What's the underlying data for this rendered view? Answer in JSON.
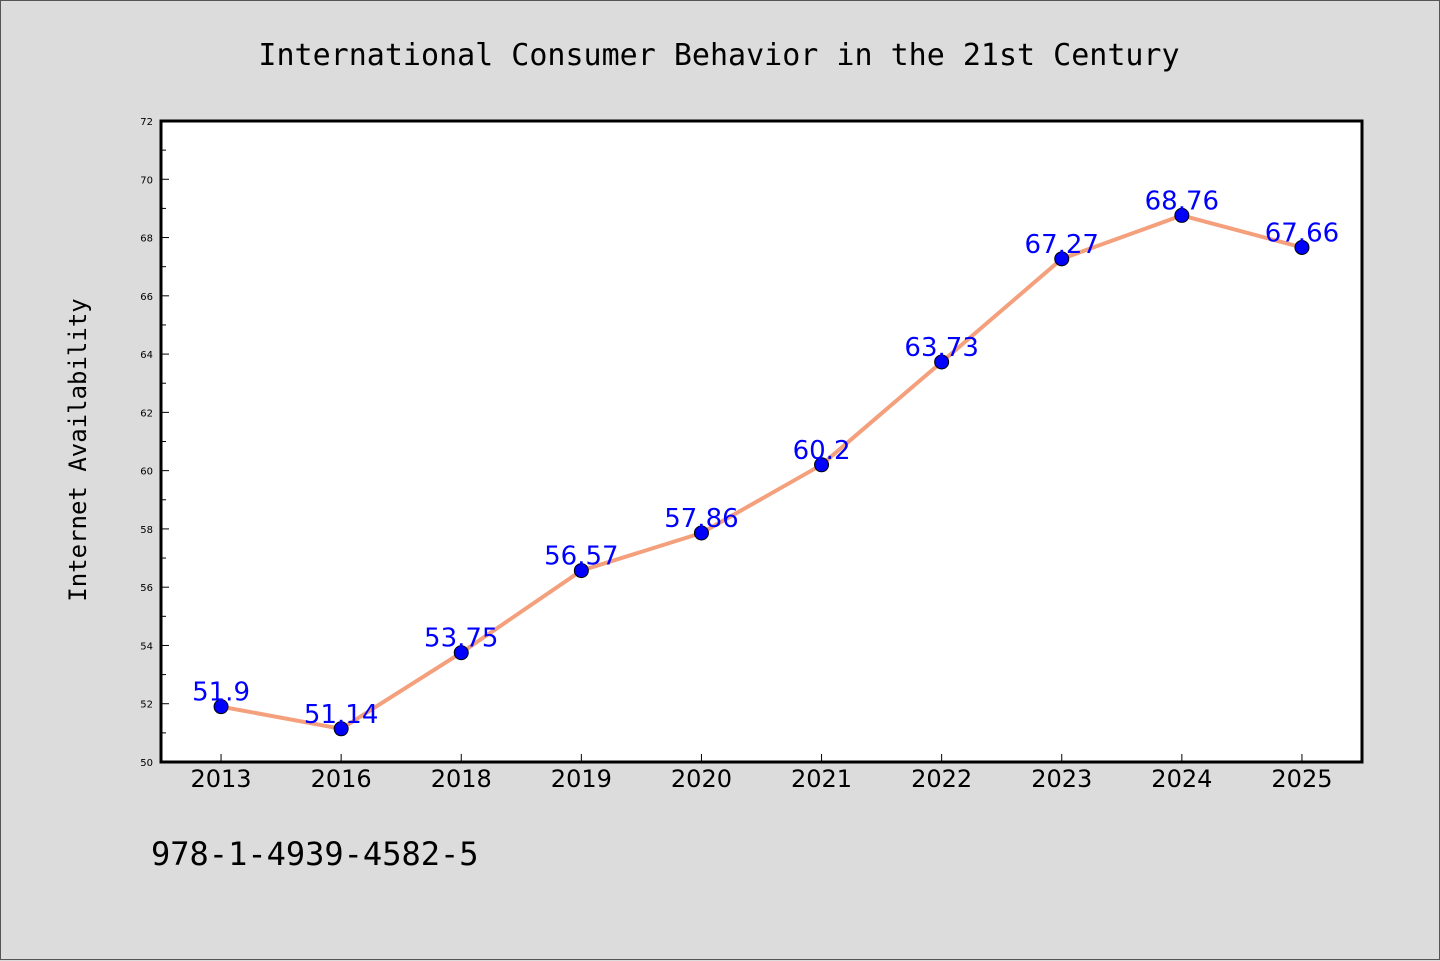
{
  "chart_data": {
    "type": "line",
    "title": "International Consumer Behavior in the 21st Century",
    "xlabel": "",
    "ylabel": "Internet Availability",
    "categories": [
      "2013",
      "2016",
      "2018",
      "2019",
      "2020",
      "2021",
      "2022",
      "2023",
      "2024",
      "2025"
    ],
    "values": [
      51.9,
      51.14,
      53.75,
      56.57,
      57.86,
      60.2,
      63.73,
      67.27,
      68.76,
      67.66
    ],
    "data_labels": [
      "51.9",
      "51.14",
      "53.75",
      "56.57",
      "57.86",
      "60.2",
      "63.73",
      "67.27",
      "68.76",
      "67.66"
    ],
    "ylim": [
      50,
      72
    ],
    "yticks": [
      50,
      52,
      54,
      56,
      58,
      60,
      62,
      64,
      66,
      68,
      70,
      72
    ],
    "grid": false,
    "line_color": "#f4a07c",
    "marker_color": "#0000ff",
    "label_color": "#0000ff"
  },
  "footer": {
    "isbn": "978-1-4939-4582-5"
  }
}
